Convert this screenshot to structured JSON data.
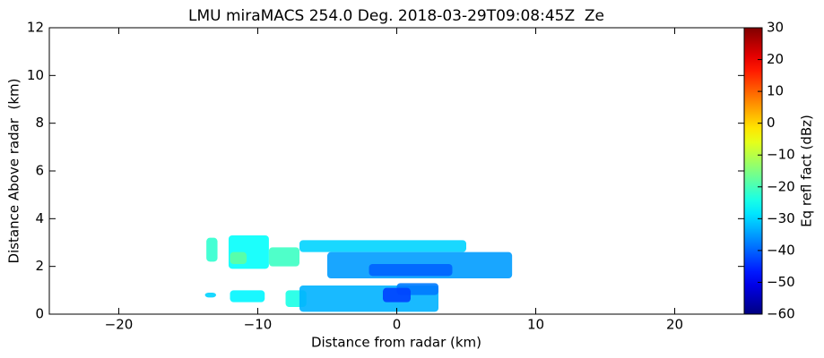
{
  "chart_data": {
    "type": "rhi",
    "title": "LMU miraMACS 254.0 Deg. 2018-03-29T09:08:45Z  Ze",
    "x_label": "Distance from radar (km)",
    "y_label": "Distance Above radar  (km)",
    "colorbar_label": "Eq refl fact (dBz)",
    "colormap": "jet",
    "xlim": [
      -25,
      25
    ],
    "ylim": [
      0,
      12
    ],
    "xticks": [
      {
        "value": -20,
        "label": "−20"
      },
      {
        "value": -10,
        "label": "−10"
      },
      0,
      10,
      20
    ],
    "yticks": [
      0,
      2,
      4,
      6,
      8,
      10,
      12
    ],
    "clim": [
      -60,
      30
    ],
    "cticks": [
      {
        "value": -60,
        "label": "−60"
      },
      {
        "value": -50,
        "label": "−50"
      },
      {
        "value": -40,
        "label": "−40"
      },
      {
        "value": -30,
        "label": "−30"
      },
      {
        "value": -20,
        "label": "−20"
      },
      {
        "value": -10,
        "label": "−10"
      },
      0,
      10,
      20,
      30
    ],
    "patches": [
      {
        "x": [
          -13.7,
          -12.9
        ],
        "y": [
          2.2,
          3.2
        ],
        "value": -22
      },
      {
        "x": [
          -12.1,
          -9.2
        ],
        "y": [
          1.9,
          3.3
        ],
        "value": -26
      },
      {
        "x": [
          -12.0,
          -10.8
        ],
        "y": [
          2.1,
          2.6
        ],
        "value": -18
      },
      {
        "x": [
          -9.2,
          -7.0
        ],
        "y": [
          2.0,
          2.8
        ],
        "value": -21
      },
      {
        "x": [
          -7.0,
          5.0
        ],
        "y": [
          2.6,
          3.1
        ],
        "value": -30
      },
      {
        "x": [
          -5.0,
          8.3
        ],
        "y": [
          1.5,
          2.6
        ],
        "value": -35
      },
      {
        "x": [
          -2.0,
          4.0
        ],
        "y": [
          1.6,
          2.1
        ],
        "value": -40
      },
      {
        "x": [
          -13.8,
          -13.0
        ],
        "y": [
          0.7,
          0.9
        ],
        "value": -30
      },
      {
        "x": [
          -12.0,
          -9.5
        ],
        "y": [
          0.5,
          1.0
        ],
        "value": -27
      },
      {
        "x": [
          -8.0,
          -6.5
        ],
        "y": [
          0.3,
          1.0
        ],
        "value": -24
      },
      {
        "x": [
          -7.0,
          3.0
        ],
        "y": [
          0.1,
          1.2
        ],
        "value": -33
      },
      {
        "x": [
          0.0,
          3.0
        ],
        "y": [
          0.8,
          1.3
        ],
        "value": -38
      },
      {
        "x": [
          -1.0,
          1.0
        ],
        "y": [
          0.5,
          1.1
        ],
        "value": -43
      }
    ]
  }
}
